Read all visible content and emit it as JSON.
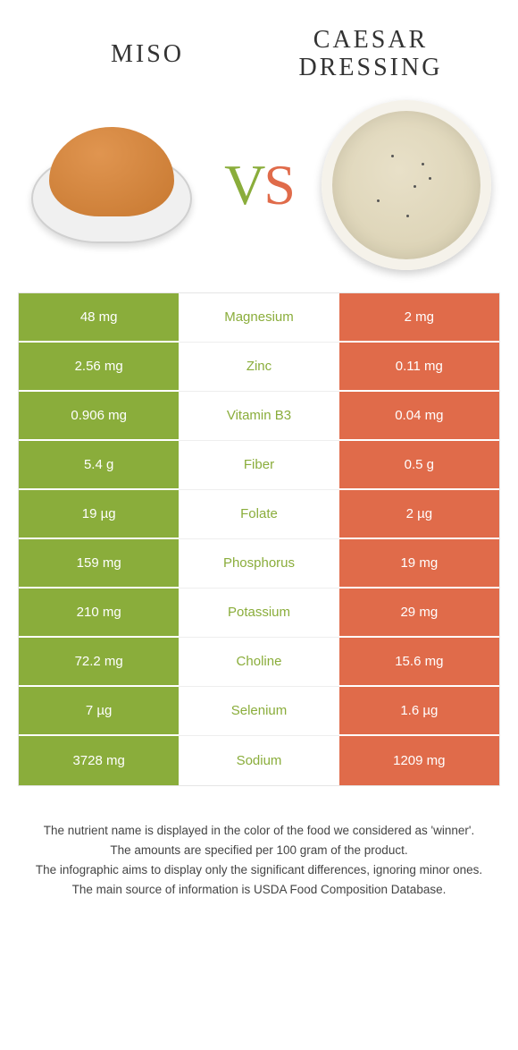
{
  "header": {
    "left_title": "Miso",
    "right_title": "Caesar dressing",
    "vs_v": "V",
    "vs_s": "S"
  },
  "colors": {
    "left_cell": "#8aad3b",
    "right_cell": "#e06b4a",
    "mid_text_left_winner": "#8aad3b",
    "mid_text_right_winner": "#e06b4a",
    "background": "#ffffff",
    "border": "#e5e5e5"
  },
  "table": {
    "rows": [
      {
        "nutrient": "Magnesium",
        "left": "48 mg",
        "right": "2 mg",
        "winner": "left"
      },
      {
        "nutrient": "Zinc",
        "left": "2.56 mg",
        "right": "0.11 mg",
        "winner": "left"
      },
      {
        "nutrient": "Vitamin B3",
        "left": "0.906 mg",
        "right": "0.04 mg",
        "winner": "left"
      },
      {
        "nutrient": "Fiber",
        "left": "5.4 g",
        "right": "0.5 g",
        "winner": "left"
      },
      {
        "nutrient": "Folate",
        "left": "19 µg",
        "right": "2 µg",
        "winner": "left"
      },
      {
        "nutrient": "Phosphorus",
        "left": "159 mg",
        "right": "19 mg",
        "winner": "left"
      },
      {
        "nutrient": "Potassium",
        "left": "210 mg",
        "right": "29 mg",
        "winner": "left"
      },
      {
        "nutrient": "Choline",
        "left": "72.2 mg",
        "right": "15.6 mg",
        "winner": "left"
      },
      {
        "nutrient": "Selenium",
        "left": "7 µg",
        "right": "1.6 µg",
        "winner": "left"
      },
      {
        "nutrient": "Sodium",
        "left": "3728 mg",
        "right": "1209 mg",
        "winner": "left"
      }
    ]
  },
  "footnotes": {
    "line1": "The nutrient name is displayed in the color of the food we considered as 'winner'.",
    "line2": "The amounts are specified per 100 gram of the product.",
    "line3": "The infographic aims to display only the significant differences, ignoring minor ones.",
    "line4": "The main source of information is USDA Food Composition Database."
  }
}
